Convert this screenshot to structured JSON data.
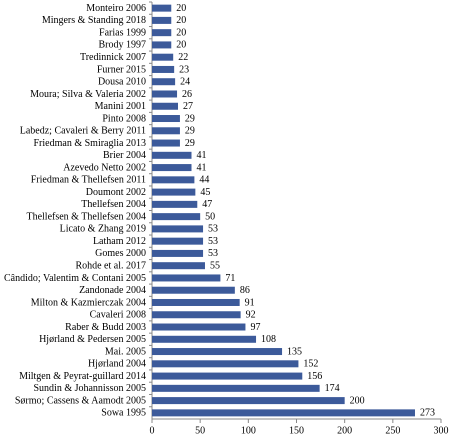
{
  "chart_data": {
    "type": "bar",
    "orientation": "horizontal",
    "categories": [
      "Monteiro 2006",
      "Mingers & Standing 2018",
      "Farias 1999",
      "Brody 1997",
      "Tredinnick 2007",
      "Furner 2015",
      "Dousa 2010",
      "Moura; Silva & Valeria 2002",
      "Manini 2001",
      "Pinto 2008",
      "Labedz; Cavaleri & Berry 2011",
      "Friedman & Smiraglia 2013",
      "Brier 2004",
      "Azevedo Netto 2002",
      "Friedman & Thellefsen 2011",
      "Doumont 2002",
      "Thellefsen 2004",
      "Thellefsen & Thellefsen 2004",
      "Licato & Zhang 2019",
      "Latham 2012",
      "Gomes 2000",
      "Rohde et al. 2017",
      "Cândido; Valentim & Contani 2005",
      "Zandonade 2004",
      "Milton & Kazmierczak 2004",
      "Cavaleri 2008",
      "Raber & Budd 2003",
      "Hjørland & Pedersen 2005",
      "Mai. 2005",
      "Hjørland 2004",
      "Miltgen & Peyrat-guillard 2014",
      "Sundin & Johannisson 2005",
      "Sørmo; Cassens & Aamodt 2005",
      "Sowa 1995"
    ],
    "values": [
      20,
      20,
      20,
      20,
      22,
      23,
      24,
      26,
      27,
      29,
      29,
      29,
      41,
      41,
      44,
      45,
      47,
      50,
      53,
      53,
      53,
      55,
      71,
      86,
      91,
      92,
      97,
      108,
      135,
      152,
      156,
      174,
      200,
      273
    ],
    "color": "#3c5a9a",
    "xlim": [
      0,
      300
    ],
    "xticks": [
      0,
      50,
      100,
      150,
      200,
      250,
      300
    ]
  }
}
